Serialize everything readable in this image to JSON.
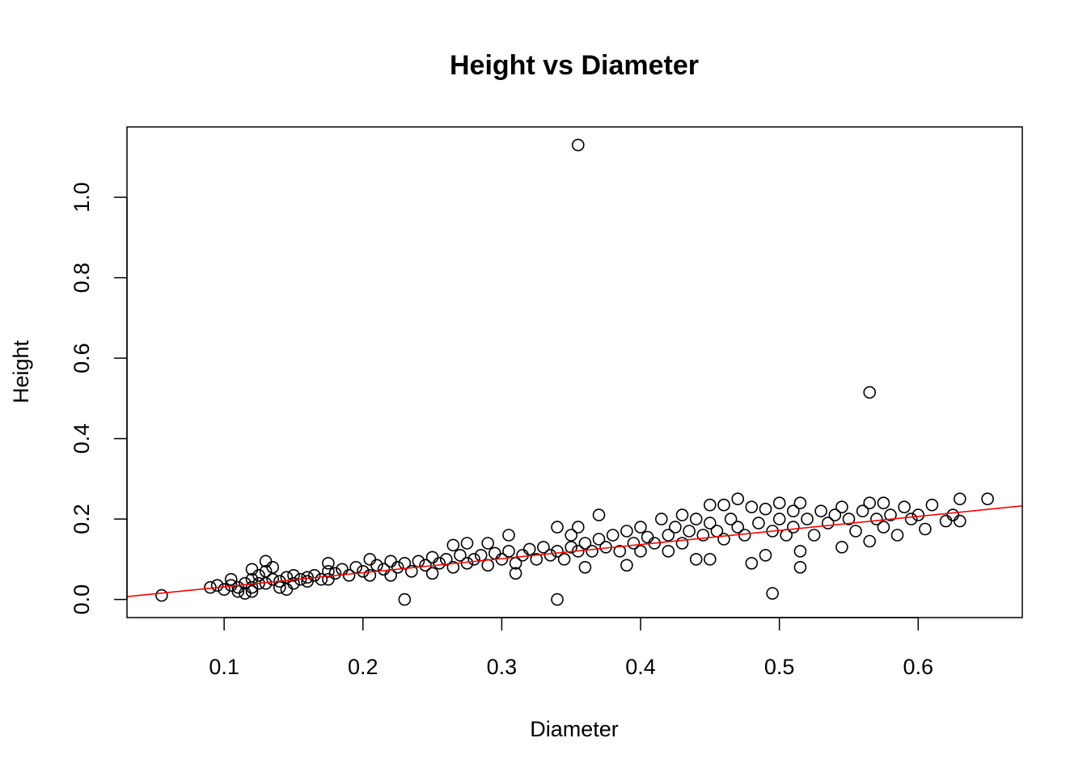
{
  "chart_data": {
    "type": "scatter",
    "title": "Height vs Diameter",
    "xlabel": "Diameter",
    "ylabel": "Height",
    "xlim": [
      0.03,
      0.675
    ],
    "ylim": [
      -0.045,
      1.175
    ],
    "x_ticks": [
      0.1,
      0.2,
      0.3,
      0.4,
      0.5,
      0.6
    ],
    "x_tick_labels": [
      "0.1",
      "0.2",
      "0.3",
      "0.4",
      "0.5",
      "0.6"
    ],
    "y_ticks": [
      0.0,
      0.2,
      0.4,
      0.6,
      0.8,
      1.0
    ],
    "y_tick_labels": [
      "0.0",
      "0.2",
      "0.4",
      "0.6",
      "0.8",
      "1.0"
    ],
    "grid": false,
    "legend": "none",
    "colors": {
      "points": "#000000",
      "fit_line": "#ff0000",
      "axes": "#000000"
    },
    "fit_line": {
      "intercept": -0.0035,
      "slope": 0.3499
    },
    "series": [
      {
        "marker": "open-circle",
        "points": [
          [
            0.055,
            0.01
          ],
          [
            0.09,
            0.03
          ],
          [
            0.095,
            0.035
          ],
          [
            0.1,
            0.025
          ],
          [
            0.105,
            0.05
          ],
          [
            0.105,
            0.035
          ],
          [
            0.11,
            0.03
          ],
          [
            0.11,
            0.02
          ],
          [
            0.115,
            0.04
          ],
          [
            0.115,
            0.015
          ],
          [
            0.12,
            0.075
          ],
          [
            0.12,
            0.05
          ],
          [
            0.12,
            0.03
          ],
          [
            0.12,
            0.02
          ],
          [
            0.125,
            0.06
          ],
          [
            0.125,
            0.04
          ],
          [
            0.13,
            0.095
          ],
          [
            0.13,
            0.07
          ],
          [
            0.13,
            0.04
          ],
          [
            0.135,
            0.08
          ],
          [
            0.135,
            0.05
          ],
          [
            0.14,
            0.045
          ],
          [
            0.14,
            0.03
          ],
          [
            0.145,
            0.055
          ],
          [
            0.145,
            0.025
          ],
          [
            0.15,
            0.06
          ],
          [
            0.15,
            0.04
          ],
          [
            0.155,
            0.05
          ],
          [
            0.16,
            0.055
          ],
          [
            0.16,
            0.045
          ],
          [
            0.165,
            0.06
          ],
          [
            0.17,
            0.05
          ],
          [
            0.175,
            0.09
          ],
          [
            0.175,
            0.07
          ],
          [
            0.175,
            0.05
          ],
          [
            0.18,
            0.065
          ],
          [
            0.185,
            0.075
          ],
          [
            0.19,
            0.06
          ],
          [
            0.195,
            0.08
          ],
          [
            0.2,
            0.07
          ],
          [
            0.205,
            0.1
          ],
          [
            0.205,
            0.06
          ],
          [
            0.21,
            0.085
          ],
          [
            0.215,
            0.075
          ],
          [
            0.22,
            0.095
          ],
          [
            0.22,
            0.06
          ],
          [
            0.225,
            0.08
          ],
          [
            0.23,
            0.0
          ],
          [
            0.23,
            0.09
          ],
          [
            0.235,
            0.07
          ],
          [
            0.24,
            0.095
          ],
          [
            0.245,
            0.085
          ],
          [
            0.25,
            0.105
          ],
          [
            0.25,
            0.065
          ],
          [
            0.255,
            0.09
          ],
          [
            0.26,
            0.1
          ],
          [
            0.265,
            0.135
          ],
          [
            0.265,
            0.08
          ],
          [
            0.27,
            0.11
          ],
          [
            0.275,
            0.14
          ],
          [
            0.275,
            0.09
          ],
          [
            0.28,
            0.1
          ],
          [
            0.285,
            0.11
          ],
          [
            0.29,
            0.14
          ],
          [
            0.29,
            0.085
          ],
          [
            0.295,
            0.115
          ],
          [
            0.3,
            0.1
          ],
          [
            0.305,
            0.16
          ],
          [
            0.305,
            0.12
          ],
          [
            0.31,
            0.09
          ],
          [
            0.31,
            0.065
          ],
          [
            0.315,
            0.11
          ],
          [
            0.32,
            0.125
          ],
          [
            0.325,
            0.1
          ],
          [
            0.33,
            0.13
          ],
          [
            0.335,
            0.11
          ],
          [
            0.34,
            0.18
          ],
          [
            0.34,
            0.0
          ],
          [
            0.34,
            0.12
          ],
          [
            0.345,
            0.1
          ],
          [
            0.35,
            0.16
          ],
          [
            0.35,
            0.13
          ],
          [
            0.355,
            1.13
          ],
          [
            0.355,
            0.18
          ],
          [
            0.355,
            0.12
          ],
          [
            0.36,
            0.14
          ],
          [
            0.36,
            0.08
          ],
          [
            0.365,
            0.12
          ],
          [
            0.37,
            0.21
          ],
          [
            0.37,
            0.15
          ],
          [
            0.375,
            0.13
          ],
          [
            0.38,
            0.16
          ],
          [
            0.385,
            0.12
          ],
          [
            0.39,
            0.17
          ],
          [
            0.39,
            0.085
          ],
          [
            0.395,
            0.14
          ],
          [
            0.4,
            0.18
          ],
          [
            0.4,
            0.12
          ],
          [
            0.405,
            0.155
          ],
          [
            0.41,
            0.14
          ],
          [
            0.415,
            0.2
          ],
          [
            0.42,
            0.16
          ],
          [
            0.42,
            0.12
          ],
          [
            0.425,
            0.18
          ],
          [
            0.43,
            0.21
          ],
          [
            0.43,
            0.14
          ],
          [
            0.435,
            0.17
          ],
          [
            0.44,
            0.2
          ],
          [
            0.44,
            0.1
          ],
          [
            0.445,
            0.16
          ],
          [
            0.45,
            0.235
          ],
          [
            0.45,
            0.19
          ],
          [
            0.45,
            0.1
          ],
          [
            0.455,
            0.17
          ],
          [
            0.46,
            0.235
          ],
          [
            0.46,
            0.15
          ],
          [
            0.465,
            0.2
          ],
          [
            0.47,
            0.25
          ],
          [
            0.47,
            0.18
          ],
          [
            0.475,
            0.16
          ],
          [
            0.48,
            0.23
          ],
          [
            0.48,
            0.09
          ],
          [
            0.485,
            0.19
          ],
          [
            0.49,
            0.225
          ],
          [
            0.49,
            0.11
          ],
          [
            0.495,
            0.015
          ],
          [
            0.495,
            0.17
          ],
          [
            0.5,
            0.24
          ],
          [
            0.5,
            0.2
          ],
          [
            0.505,
            0.16
          ],
          [
            0.51,
            0.22
          ],
          [
            0.51,
            0.18
          ],
          [
            0.515,
            0.24
          ],
          [
            0.515,
            0.08
          ],
          [
            0.515,
            0.12
          ],
          [
            0.52,
            0.2
          ],
          [
            0.525,
            0.16
          ],
          [
            0.53,
            0.22
          ],
          [
            0.535,
            0.19
          ],
          [
            0.54,
            0.21
          ],
          [
            0.545,
            0.13
          ],
          [
            0.545,
            0.23
          ],
          [
            0.55,
            0.2
          ],
          [
            0.555,
            0.17
          ],
          [
            0.56,
            0.22
          ],
          [
            0.565,
            0.515
          ],
          [
            0.565,
            0.24
          ],
          [
            0.565,
            0.145
          ],
          [
            0.57,
            0.2
          ],
          [
            0.575,
            0.24
          ],
          [
            0.575,
            0.18
          ],
          [
            0.58,
            0.21
          ],
          [
            0.585,
            0.16
          ],
          [
            0.59,
            0.23
          ],
          [
            0.595,
            0.2
          ],
          [
            0.6,
            0.21
          ],
          [
            0.605,
            0.175
          ],
          [
            0.61,
            0.235
          ],
          [
            0.62,
            0.195
          ],
          [
            0.625,
            0.21
          ],
          [
            0.63,
            0.25
          ],
          [
            0.63,
            0.195
          ],
          [
            0.65,
            0.25
          ]
        ]
      }
    ]
  }
}
